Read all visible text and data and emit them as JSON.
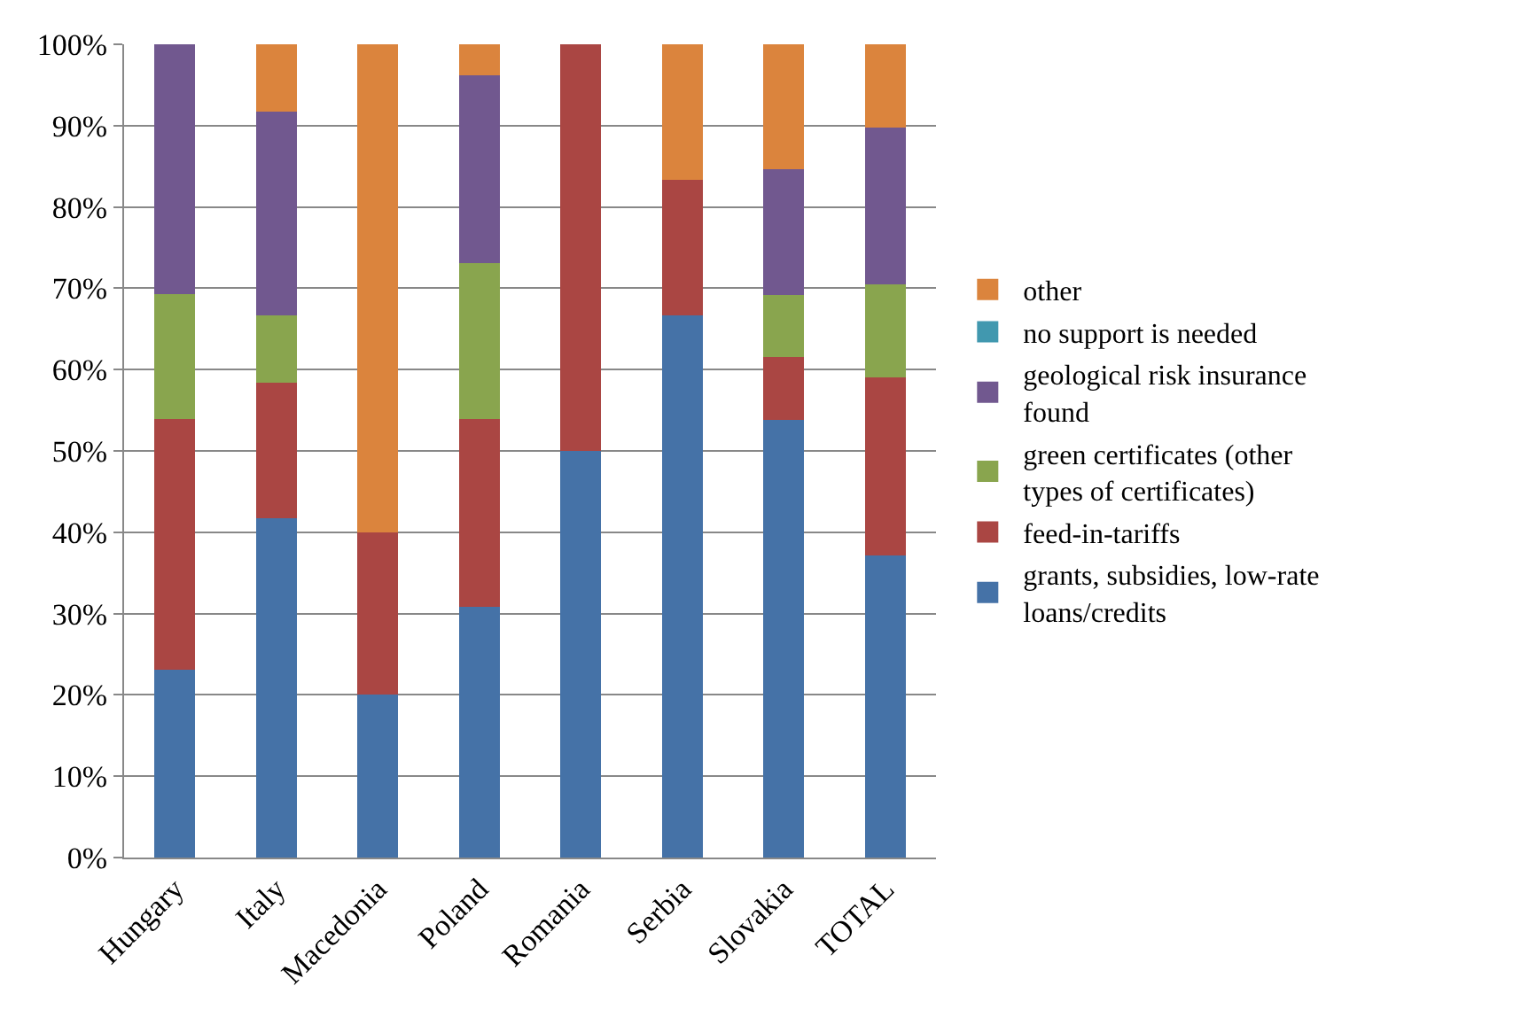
{
  "chart_data": {
    "type": "bar",
    "stacked": true,
    "categories": [
      "Hungary",
      "Italy",
      "Macedonia",
      "Poland",
      "Romania",
      "Serbia",
      "Slovakia",
      "TOTAL"
    ],
    "series": [
      {
        "name": "grants, subsidies, low-rate loans/credits",
        "color": "#4572a7",
        "values": [
          23.1,
          41.7,
          20,
          30.8,
          50,
          66.7,
          53.8,
          37.2
        ]
      },
      {
        "name": "feed-in-tariffs",
        "color": "#aa4643",
        "values": [
          30.8,
          16.7,
          20,
          23.1,
          50,
          16.6,
          7.7,
          21.8
        ]
      },
      {
        "name": "green certificates (other types of certificates)",
        "color": "#89a54e",
        "values": [
          15.4,
          8.3,
          0,
          19.2,
          0,
          0,
          7.7,
          11.5
        ]
      },
      {
        "name": "geological risk insurance found",
        "color": "#71588f",
        "values": [
          30.7,
          25,
          0,
          23.1,
          0,
          0,
          15.4,
          19.3
        ]
      },
      {
        "name": "no support is needed",
        "color": "#4198af",
        "values": [
          0,
          0,
          0,
          0,
          0,
          0,
          0,
          0
        ]
      },
      {
        "name": "other",
        "color": "#db843d",
        "values": [
          0,
          8.3,
          60,
          3.8,
          0,
          16.7,
          15.4,
          10.2
        ]
      }
    ],
    "ylim": [
      0,
      100
    ],
    "yticks": [
      {
        "value": 0,
        "label": "0%"
      },
      {
        "value": 10,
        "label": "10%"
      },
      {
        "value": 20,
        "label": "20%"
      },
      {
        "value": 30,
        "label": "30%"
      },
      {
        "value": 40,
        "label": "40%"
      },
      {
        "value": 50,
        "label": "50%"
      },
      {
        "value": 60,
        "label": "60%"
      },
      {
        "value": 70,
        "label": "70%"
      },
      {
        "value": 80,
        "label": "80%"
      },
      {
        "value": 90,
        "label": "90%"
      },
      {
        "value": 100,
        "label": "100%"
      }
    ],
    "grid": "y",
    "legend": "right"
  }
}
